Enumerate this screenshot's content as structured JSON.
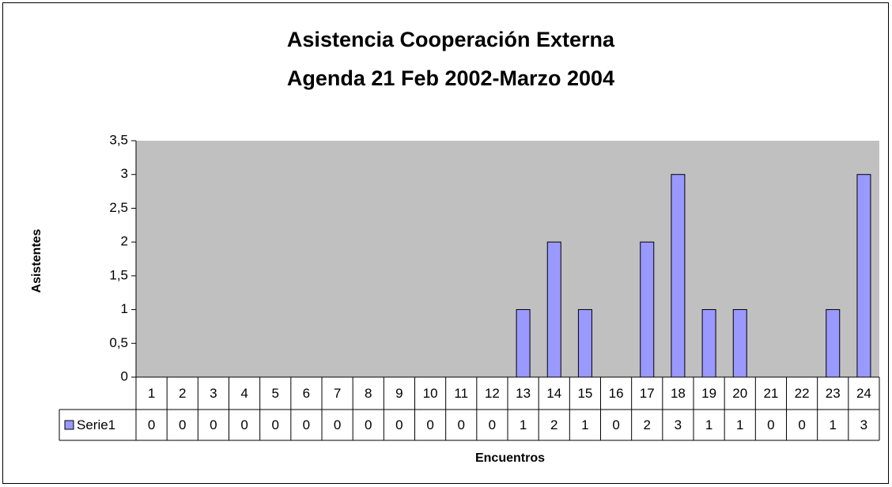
{
  "chart_data": {
    "type": "bar",
    "title": [
      "Asistencia Cooperación Externa",
      "Agenda 21 Feb 2002-Marzo 2004"
    ],
    "x_label": "Encuentros",
    "y_label": "Asistentes",
    "categories": [
      "1",
      "2",
      "3",
      "4",
      "5",
      "6",
      "7",
      "8",
      "9",
      "10",
      "11",
      "12",
      "13",
      "14",
      "15",
      "16",
      "17",
      "18",
      "19",
      "20",
      "21",
      "22",
      "23",
      "24"
    ],
    "series": [
      {
        "name": "Serie1",
        "color": "#9999ff",
        "values": [
          0,
          0,
          0,
          0,
          0,
          0,
          0,
          0,
          0,
          0,
          0,
          0,
          1,
          2,
          1,
          0,
          2,
          3,
          1,
          1,
          0,
          0,
          1,
          3
        ]
      }
    ],
    "ylim": [
      0,
      3.5
    ],
    "yticks": [
      0,
      {
        "value": 0.5,
        "label": "0,5"
      },
      1,
      {
        "value": 1.5,
        "label": "1,5"
      },
      2,
      {
        "value": 2.5,
        "label": "2,5"
      },
      3,
      {
        "value": 3.5,
        "label": "3,5"
      }
    ],
    "grid": false,
    "data_table": true
  }
}
